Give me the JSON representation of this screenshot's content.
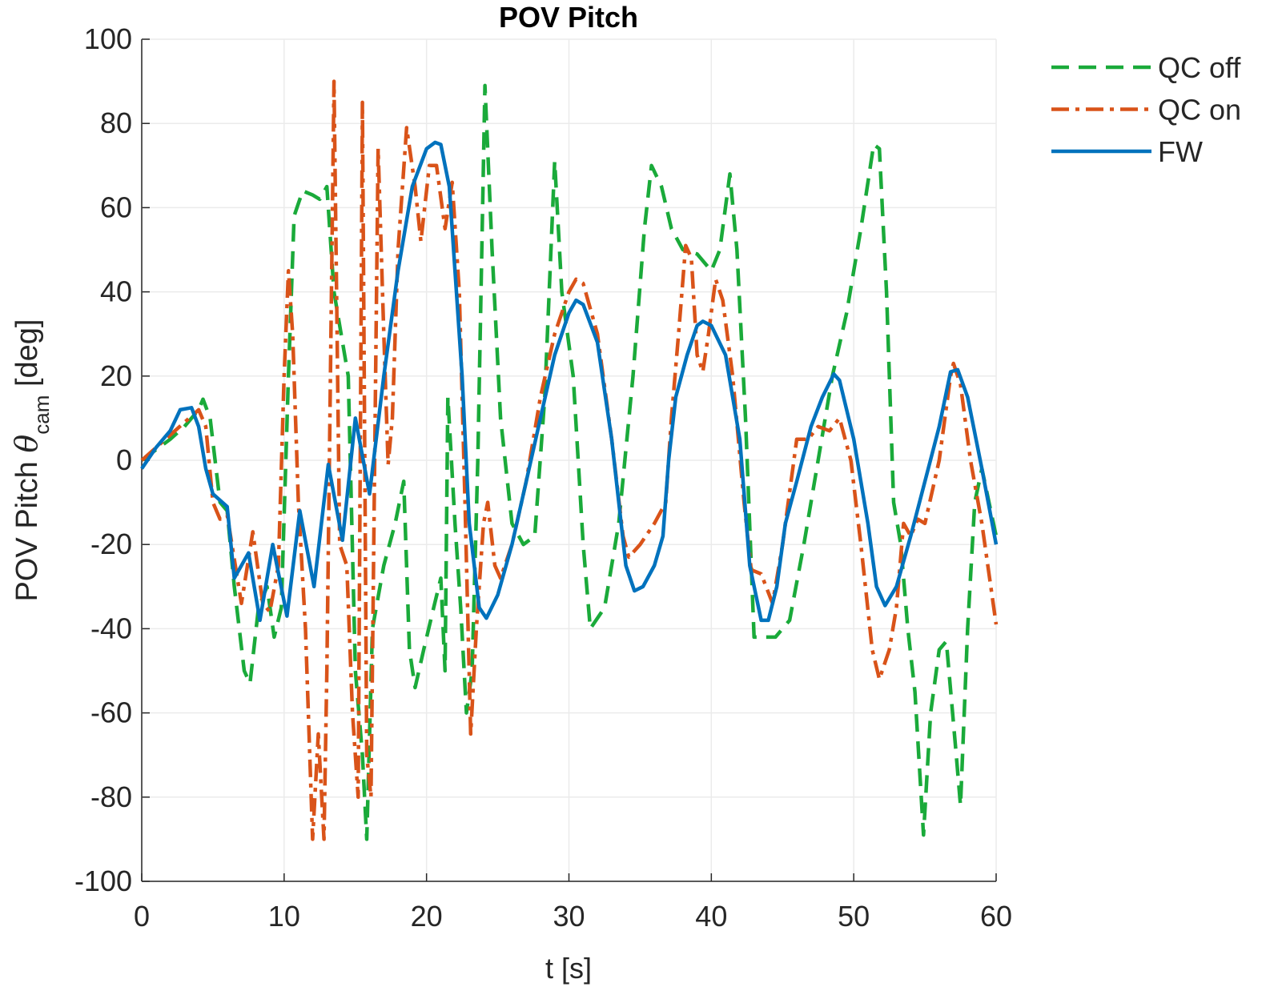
{
  "chart_data": {
    "type": "line",
    "title": "POV Pitch",
    "xlabel": "t [s]",
    "ylabel_parts": [
      "POV Pitch ",
      "θ",
      "cam",
      " [deg]"
    ],
    "xlim": [
      0,
      60
    ],
    "xticks": [
      0,
      10,
      20,
      30,
      40,
      50,
      60
    ],
    "ylim": [
      -100,
      100
    ],
    "yticks": [
      -100,
      -80,
      -60,
      -40,
      -20,
      0,
      20,
      40,
      60,
      80,
      100
    ],
    "grid": true,
    "legend_position": "outside-top-right",
    "series": [
      {
        "name": "QC off",
        "color": "#1aaa3a",
        "line_style": "dashed",
        "x": [
          0,
          2,
          3,
          4,
          4.3,
          4.8,
          5.5,
          6,
          6.5,
          7.2,
          7.6,
          8.2,
          8.8,
          9.3,
          9.8,
          10.3,
          10.7,
          11.3,
          12,
          12.5,
          13,
          13.5,
          14,
          14.5,
          15,
          15.5,
          15.8,
          16.2,
          17,
          17.8,
          18.4,
          18.8,
          19.2,
          19.8,
          20.5,
          21,
          21.3,
          21.5,
          22,
          22.4,
          22.8,
          23.2,
          23.6,
          24.1,
          24.6,
          25.2,
          26,
          26.8,
          27.6,
          28.3,
          29,
          29.5,
          30.3,
          31,
          31.5,
          32.5,
          33.5,
          34.5,
          35.3,
          35.8,
          36.5,
          37.2,
          38,
          39,
          40,
          40.6,
          41.3,
          41.8,
          42.4,
          43,
          43.5,
          44.5,
          45.5,
          46.5,
          47.5,
          48.5,
          49.5,
          50.5,
          51.4,
          51.8,
          52.3,
          52.8,
          53.3,
          53.8,
          54.3,
          54.9,
          55.4,
          56,
          56.5,
          57.2,
          57.5,
          58,
          58.5,
          59,
          60
        ],
        "values": [
          0,
          5,
          8,
          12,
          14.5,
          10,
          -10,
          -12,
          -30,
          -50,
          -53,
          -35,
          -30,
          -42,
          -35,
          20,
          58,
          64,
          63,
          62,
          65,
          40,
          30,
          20,
          -50,
          -70,
          -90,
          -40,
          -25,
          -15,
          -5,
          -45,
          -54,
          -45,
          -35,
          -28,
          -50,
          15,
          -15,
          -35,
          -60,
          -50,
          0,
          89,
          50,
          10,
          -15,
          -20,
          -18,
          15,
          71,
          40,
          20,
          -20,
          -40,
          -35,
          -15,
          20,
          55,
          70,
          65,
          55,
          50,
          49,
          45,
          50,
          68,
          50,
          10,
          -42,
          -42,
          -42,
          -38,
          -20,
          0,
          20,
          35,
          55,
          75,
          74,
          40,
          -10,
          -20,
          -40,
          -55,
          -89,
          -60,
          -45,
          -43,
          -70,
          -82,
          -40,
          -10,
          -2,
          -18
        ]
      },
      {
        "name": "QC on",
        "color": "#d95319",
        "line_style": "dashdot",
        "x": [
          0,
          1,
          2,
          3,
          4,
          4.5,
          5,
          5.5,
          6,
          7,
          7.8,
          8.5,
          9,
          9.6,
          10,
          10.3,
          10.6,
          11,
          11.5,
          12,
          12.4,
          12.8,
          13,
          13.5,
          13.9,
          14.4,
          14.8,
          15.2,
          15.5,
          15.8,
          16.1,
          16.6,
          17,
          17.3,
          17.6,
          18,
          18.6,
          19.2,
          19.6,
          20.2,
          20.7,
          21.3,
          21.8,
          22.3,
          22.7,
          23.1,
          23.5,
          24,
          24.3,
          24.8,
          25.2,
          26,
          27,
          28,
          29,
          30,
          30.5,
          31,
          32,
          33,
          33.8,
          34.2,
          35,
          36,
          36.8,
          37.2,
          37.7,
          38.2,
          38.6,
          39,
          39.4,
          39.8,
          40.3,
          40.8,
          41.5,
          42.3,
          42.8,
          43.5,
          44.3,
          45,
          46,
          46.8,
          47.5,
          48.3,
          49,
          49.8,
          50.5,
          51.3,
          51.8,
          52.5,
          53,
          53.5,
          54,
          54.5,
          55,
          56,
          56.8,
          57,
          57.5,
          58.2,
          59,
          60
        ],
        "values": [
          0,
          3,
          6,
          9,
          12,
          8,
          -10,
          -14,
          -13,
          -34,
          -17,
          -34,
          -36,
          -25,
          20,
          45,
          30,
          -10,
          -40,
          -90,
          -65,
          -90,
          -50,
          90,
          -20,
          -25,
          -60,
          -80,
          85,
          -70,
          -80,
          74,
          30,
          -1,
          10,
          50,
          79,
          65,
          52,
          70,
          70,
          55,
          66,
          40,
          -10,
          -65,
          -40,
          -15,
          -10,
          -25,
          -28,
          -20,
          -5,
          15,
          30,
          40,
          43,
          42,
          30,
          5,
          -18,
          -23,
          -20,
          -15,
          -10,
          10,
          30,
          51,
          48,
          25,
          21,
          30,
          43,
          38,
          20,
          -10,
          -26,
          -27,
          -34,
          -20,
          5,
          5,
          8,
          7,
          10,
          0,
          -20,
          -45,
          -52,
          -45,
          -35,
          -15,
          -18,
          -14,
          -15,
          0,
          20,
          23,
          18,
          0,
          -15,
          -39
        ]
      },
      {
        "name": "FW",
        "color": "#0072bd",
        "line_style": "solid",
        "x": [
          0,
          1,
          2,
          2.7,
          3.5,
          4,
          4.5,
          5,
          6,
          6.5,
          7.5,
          8.3,
          9.2,
          10.2,
          11.1,
          12.1,
          13.1,
          14.1,
          15,
          16,
          17,
          18,
          19,
          20,
          20.6,
          21,
          21.6,
          22.5,
          23,
          23.7,
          24.2,
          25,
          26,
          27,
          28,
          29,
          30,
          30.5,
          31,
          32,
          33,
          34,
          34.6,
          35.2,
          36,
          36.6,
          37,
          37.5,
          38.3,
          39,
          39.4,
          40,
          41,
          42,
          42.7,
          43.5,
          44,
          44.6,
          45.2,
          46,
          47,
          47.8,
          48.6,
          49,
          50,
          51,
          51.6,
          52.2,
          53,
          54,
          55,
          56,
          56.8,
          57.3,
          58,
          59,
          60
        ],
        "values": [
          -2,
          3,
          7,
          12,
          12.5,
          8,
          -2,
          -8,
          -11,
          -28,
          -22,
          -38,
          -20,
          -37,
          -12,
          -30,
          -1,
          -19,
          10,
          -8,
          20,
          45,
          65,
          74,
          75.5,
          75,
          65,
          20,
          -15,
          -35,
          -37.5,
          -32,
          -20,
          -5,
          10,
          25,
          35,
          38,
          37,
          28,
          5,
          -25,
          -31,
          -30,
          -25,
          -18,
          0,
          15,
          25,
          32,
          33,
          32,
          25,
          5,
          -25,
          -38,
          -38,
          -30,
          -15,
          -5,
          8,
          15,
          20.5,
          19,
          5,
          -15,
          -30,
          -34.5,
          -30,
          -18,
          -5,
          8,
          21,
          21.5,
          15,
          -2,
          -20
        ]
      }
    ]
  }
}
